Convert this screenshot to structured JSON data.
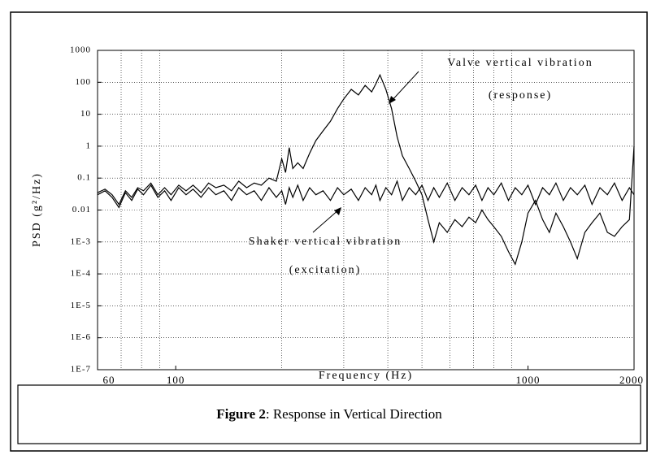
{
  "chart_data": {
    "type": "line",
    "x_label": "Frequency (Hz)",
    "y_label": "PSD (g²/Hz)",
    "x_log": true,
    "y_log": true,
    "grid": true,
    "xlim": [
      60,
      2000
    ],
    "xticks": [
      60,
      100,
      1000,
      2000
    ],
    "xminor": [
      70,
      80,
      90,
      200,
      300,
      400,
      500,
      600,
      700,
      800,
      900
    ],
    "ylim": [
      1e-07,
      1000
    ],
    "yticks": [
      1000,
      100,
      10,
      1,
      0.1,
      0.01,
      {
        "value": 0.001,
        "label": "1E-3"
      },
      {
        "value": 0.0001,
        "label": "1E-4"
      },
      {
        "value": 1e-05,
        "label": "1E-5"
      },
      {
        "value": 1e-06,
        "label": "1E-6"
      },
      {
        "value": 1e-07,
        "label": "1E-7"
      }
    ],
    "annotations": [
      "Valve vertical vibration",
      "(response)",
      "Shaker vertical vibration",
      "(excitation)"
    ],
    "x": [
      60,
      63,
      66,
      69,
      72,
      75,
      78,
      81,
      85,
      89,
      93,
      97,
      102,
      107,
      112,
      118,
      124,
      130,
      137,
      144,
      151,
      159,
      167,
      175,
      184,
      193,
      200,
      205,
      210,
      215,
      222,
      230,
      240,
      250,
      262,
      275,
      288,
      300,
      315,
      330,
      345,
      360,
      370,
      380,
      395,
      410,
      425,
      440,
      460,
      480,
      500,
      520,
      540,
      560,
      590,
      620,
      650,
      680,
      710,
      740,
      770,
      800,
      840,
      880,
      920,
      960,
      1000,
      1050,
      1100,
      1150,
      1200,
      1260,
      1320,
      1380,
      1450,
      1520,
      1600,
      1680,
      1760,
      1850,
      1940,
      2000
    ],
    "series": [
      {
        "color": "#000000",
        "values": [
          0.035,
          0.045,
          0.03,
          0.015,
          0.04,
          0.025,
          0.05,
          0.04,
          0.07,
          0.03,
          0.05,
          0.03,
          0.06,
          0.04,
          0.06,
          0.035,
          0.07,
          0.05,
          0.06,
          0.04,
          0.08,
          0.05,
          0.07,
          0.06,
          0.1,
          0.08,
          0.4,
          0.15,
          0.9,
          0.2,
          0.3,
          0.2,
          0.6,
          1.5,
          3,
          6,
          15,
          30,
          60,
          40,
          80,
          50,
          90,
          170,
          60,
          15,
          2,
          0.5,
          0.2,
          0.08,
          0.03,
          0.005,
          0.001,
          0.004,
          0.002,
          0.005,
          0.003,
          0.006,
          0.004,
          0.01,
          0.005,
          0.003,
          0.0015,
          0.0005,
          0.0002,
          0.001,
          0.008,
          0.02,
          0.005,
          0.002,
          0.008,
          0.003,
          0.001,
          0.0003,
          0.002,
          0.004,
          0.008,
          0.002,
          0.0015,
          0.003,
          0.005,
          1.0
        ]
      },
      {
        "color": "#000000",
        "values": [
          0.03,
          0.04,
          0.025,
          0.012,
          0.035,
          0.02,
          0.045,
          0.03,
          0.06,
          0.025,
          0.04,
          0.02,
          0.05,
          0.03,
          0.045,
          0.025,
          0.05,
          0.03,
          0.04,
          0.02,
          0.05,
          0.03,
          0.04,
          0.02,
          0.05,
          0.025,
          0.04,
          0.015,
          0.05,
          0.025,
          0.06,
          0.02,
          0.05,
          0.03,
          0.04,
          0.02,
          0.05,
          0.03,
          0.045,
          0.02,
          0.05,
          0.03,
          0.06,
          0.02,
          0.05,
          0.03,
          0.08,
          0.02,
          0.05,
          0.03,
          0.06,
          0.02,
          0.05,
          0.025,
          0.07,
          0.02,
          0.05,
          0.03,
          0.06,
          0.02,
          0.05,
          0.03,
          0.07,
          0.02,
          0.05,
          0.03,
          0.06,
          0.015,
          0.05,
          0.03,
          0.07,
          0.02,
          0.05,
          0.03,
          0.06,
          0.015,
          0.05,
          0.03,
          0.07,
          0.02,
          0.05,
          0.03
        ]
      }
    ]
  },
  "caption": {
    "label": "Figure 2",
    "text": ": Response in Vertical Direction"
  }
}
